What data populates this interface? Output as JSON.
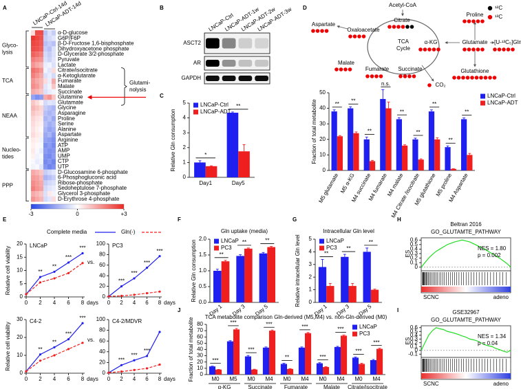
{
  "panels": [
    "A",
    "B",
    "C",
    "D",
    "E",
    "F",
    "G",
    "H",
    "I",
    "J"
  ],
  "heatmap": {
    "columns": [
      "LNCaP-Ctrl-14d",
      "LNCaP-ADT-14d"
    ],
    "rows": [
      "α-D-glucose",
      "G6P/F6P",
      "β-D-Fructose 1,6-bisphosphate",
      "Dihydroxyacetone phosphate",
      "D-Glycerate 3/2-phosphate",
      "Pyruvate",
      "Lactate",
      "Citrate/isocitrate",
      "α-Ketoglutarate",
      "Fumarate",
      "Malate",
      "Succinate",
      "Glutamine",
      "Glutamate",
      "Glycine",
      "Asparagine",
      "Proline",
      "Serine",
      "Alanine",
      "Aspartate",
      "Arginine",
      "ATP",
      "AMP",
      "UMP",
      "CTP",
      "UTP",
      "D-Glucosamine 6-phosphate",
      "6-Phosphogluconic acid",
      "Ribose-phosphate",
      "Sedoheptulose 7-phosphate",
      "Glycerol 3-phosphate",
      "D-Erythrose 4-phosphate"
    ],
    "values": [
      [
        0.5,
        2.5,
        2.5,
        -1,
        -0.5,
        -0.8
      ],
      [
        2.8,
        2.6,
        2.4,
        -0.8,
        -0.6,
        -0.4
      ],
      [
        2.6,
        2.5,
        2.3,
        -1,
        -0.8,
        -1
      ],
      [
        2.5,
        2.4,
        2.2,
        -0.8,
        -1,
        -0.5
      ],
      [
        2.2,
        2.0,
        1.8,
        -0.6,
        -0.8,
        -0.5
      ],
      [
        1.8,
        1.6,
        1.5,
        -0.5,
        -0.7,
        -0.4
      ],
      [
        1.5,
        1.2,
        1.0,
        -0.3,
        -0.2,
        -0.5
      ],
      [
        2.0,
        1.8,
        1.5,
        -0.2,
        -0.4,
        0.5
      ],
      [
        1.8,
        1.5,
        1.2,
        -0.5,
        -0.3,
        -0.6
      ],
      [
        1.5,
        1.2,
        1.0,
        0.5,
        -0.3,
        1.2
      ],
      [
        1.6,
        1.4,
        1.0,
        -0.4,
        -0.2,
        0.8
      ],
      [
        1.2,
        1.0,
        0.8,
        -0.5,
        -0.3,
        -0.2
      ],
      [
        -1.5,
        -1.8,
        -1.6,
        1.2,
        1.5,
        0.8
      ],
      [
        0.8,
        0.5,
        0.2,
        -0.6,
        -0.4,
        -0.5
      ],
      [
        1.0,
        0.8,
        0.6,
        -0.8,
        -1,
        -1.2
      ],
      [
        0.8,
        0.6,
        0.5,
        -1,
        -1.2,
        -1
      ],
      [
        0.6,
        0.4,
        0.3,
        -1.2,
        -1,
        -1.4
      ],
      [
        0.5,
        0.3,
        0.2,
        -1,
        -1.3,
        -1.1
      ],
      [
        0.4,
        0.2,
        0.1,
        -1.2,
        -1.5,
        -1.3
      ],
      [
        0.5,
        0.3,
        0.2,
        -1.4,
        -1.2,
        -1.6
      ],
      [
        0.3,
        0.2,
        -0.2,
        -1.5,
        -1.6,
        -1.8
      ],
      [
        0.2,
        0.1,
        -0.1,
        -1.8,
        -1.6,
        -1.9
      ],
      [
        0.3,
        -0.1,
        -0.3,
        -1.6,
        -1.8,
        -1.7
      ],
      [
        0.2,
        -0.2,
        -0.1,
        -1.8,
        -1.9,
        -1.6
      ],
      [
        -0.1,
        -0.3,
        -0.2,
        -1.9,
        -1.7,
        -2.0
      ],
      [
        -0.2,
        -0.1,
        -0.4,
        -1.7,
        -2.0,
        -1.8
      ],
      [
        1.2,
        1.0,
        0.8,
        -0.8,
        -0.6,
        -0.4
      ],
      [
        1.4,
        1.3,
        1.0,
        -1.2,
        -1,
        -0.8
      ],
      [
        1.6,
        1.4,
        1.2,
        -0.8,
        -0.6,
        -0.5
      ],
      [
        1.8,
        1.5,
        1.3,
        -0.6,
        -0.4,
        -0.3
      ],
      [
        1.2,
        1.0,
        0.8,
        -0.5,
        0.3,
        -0.2
      ],
      [
        1.5,
        1.2,
        1.0,
        -0.6,
        -0.4,
        0.5
      ]
    ],
    "groups": [
      [
        "Glyco-",
        "lysis"
      ],
      [
        "TCA"
      ],
      [
        "NEAA"
      ],
      [
        "Nucleo-",
        "tides"
      ],
      [
        "PPP"
      ]
    ],
    "annotation": [
      "Glutami-",
      "nolysis"
    ],
    "colorbar": {
      "range": [
        -3,
        3
      ],
      "ticks": [
        -3,
        0,
        {
          "value": 3,
          "label": "+3"
        }
      ]
    }
  },
  "blot": {
    "samples": [
      "LNCaP-Ctrl",
      "LNCaP-ADT-1w",
      "LNCaP-ADT-2w",
      "LNCaP-ADT-3w"
    ],
    "proteins": [
      "ASCT2",
      "AR",
      "GAPDH"
    ]
  },
  "pathway": {
    "nodes": [
      "Acetyl-CoA",
      "Citrate",
      "Oxaloacetate",
      "Aspartate",
      "Malate",
      "TCA",
      "Cycle",
      "α-KG",
      "Glutamate",
      "Proline",
      "[U-¹³C₅]Gln",
      "Glutathione",
      "Fumarate",
      "Succinate",
      "CO₂"
    ],
    "isotopes": [
      "¹²C",
      "¹³C"
    ]
  },
  "panel_e_legend": [
    {
      "name": "Complete media",
      "color": "#1f1ff0",
      "line_style": "solid"
    },
    {
      "name": "Gln(-)",
      "color": "#f01f1f",
      "line_style": "dashed"
    }
  ],
  "chart_data": [
    {
      "type": "bar",
      "ylabel": "Relative Gln consumption",
      "categories": [
        "Day1",
        "Day5"
      ],
      "series": [
        {
          "name": "LNCaP-Ctrl",
          "color": "#1f1ff0",
          "values": [
            1.0,
            4.35
          ],
          "errors": [
            0.12,
            0.05
          ]
        },
        {
          "name": "LNCaP-ADT",
          "color": "#f01f1f",
          "values": [
            0.75,
            1.75
          ],
          "errors": [
            0.03,
            0.45
          ]
        }
      ],
      "significance": [
        "*",
        "**"
      ],
      "ylim": [
        0,
        5
      ],
      "yticks": [
        0,
        1,
        2,
        3,
        4,
        5
      ],
      "legend": "upper left"
    },
    {
      "type": "bar",
      "ylabel": "Fraction of total metabolite",
      "categories": [
        "M5 glutamate",
        "M5 α-KG",
        "M4 succinate",
        "M4 fumarate",
        "M4 malate",
        "M4 Citrate /isocitrate",
        "M5 glutathione",
        "M5 proline",
        "M4 Aspartate"
      ],
      "series": [
        {
          "name": "LNCaP-Ctrl",
          "color": "#1f1ff0",
          "values": [
            38,
            40,
            20,
            46,
            33,
            20,
            38,
            15,
            33
          ],
          "errors": [
            1,
            1,
            1.5,
            6,
            1,
            0.8,
            1,
            0.8,
            0.8
          ]
        },
        {
          "name": "LNCaP-ADT",
          "color": "#f01f1f",
          "values": [
            22,
            24,
            6,
            40,
            16,
            7,
            20,
            1,
            10
          ],
          "errors": [
            0.5,
            0.8,
            0.5,
            4,
            0.5,
            0.5,
            1,
            0.2,
            1
          ]
        }
      ],
      "significance": [
        "**",
        "**",
        "**",
        "n.s.",
        "**",
        "**",
        "**",
        "**",
        "**"
      ],
      "ylim": [
        0,
        50
      ],
      "yticks": [
        0,
        10,
        20,
        30,
        40,
        50
      ],
      "legend": "right"
    },
    {
      "type": "line",
      "title": "LNCaP",
      "ylabel": "Relative cell viability",
      "xlabel": "days",
      "x": [
        0,
        2,
        4,
        6,
        8
      ],
      "xlim": [
        0,
        8
      ],
      "xticks": [
        0,
        2,
        4,
        6,
        8
      ],
      "ylim": [
        0,
        20
      ],
      "yticks": [
        0,
        5,
        10,
        15,
        20
      ],
      "series": [
        {
          "color": "#1f1ff0",
          "line_style": "solid",
          "values": [
            1,
            7.5,
            9.5,
            13,
            16.5
          ]
        },
        {
          "color": "#f01f1f",
          "line_style": "dashed",
          "values": [
            1,
            5.5,
            7,
            9,
            12.8
          ]
        }
      ],
      "significance": [
        null,
        "**",
        "**",
        "***",
        "***"
      ],
      "annotation": "vs."
    },
    {
      "type": "line",
      "title": "PC3",
      "xlabel": "days",
      "x": [
        0,
        2,
        4,
        6,
        8
      ],
      "xlim": [
        0,
        8
      ],
      "xticks": [
        0,
        2,
        4,
        6,
        8
      ],
      "ylim": [
        0,
        100
      ],
      "yticks": [
        0,
        20,
        40,
        60,
        80,
        100
      ],
      "series": [
        {
          "color": "#1f1ff0",
          "line_style": "solid",
          "values": [
            1,
            20,
            35,
            55,
            77
          ]
        },
        {
          "color": "#f01f1f",
          "line_style": "dashed",
          "values": [
            1,
            2,
            4,
            7,
            10
          ]
        }
      ],
      "significance": [
        null,
        "***",
        "***",
        "***",
        "***"
      ]
    },
    {
      "type": "line",
      "title": "C4-2",
      "ylabel": "Relative cell viability",
      "xlabel": "days",
      "x": [
        0,
        2,
        4,
        6,
        8
      ],
      "xlim": [
        0,
        8
      ],
      "xticks": [
        0,
        2,
        4,
        6,
        8
      ],
      "ylim": [
        0,
        30
      ],
      "yticks": [
        0,
        10,
        20,
        30
      ],
      "series": [
        {
          "color": "#1f1ff0",
          "line_style": "solid",
          "values": [
            1,
            10.5,
            14.5,
            19,
            28
          ]
        },
        {
          "color": "#f01f1f",
          "line_style": "dashed",
          "values": [
            1,
            7,
            10,
            13.5,
            17
          ]
        }
      ],
      "significance": [
        null,
        "**",
        "**",
        "***",
        "***"
      ],
      "annotation": "vs."
    },
    {
      "type": "line",
      "title": "C4-2/MDVR",
      "xlabel": "days",
      "x": [
        0,
        2,
        4,
        6,
        8
      ],
      "xlim": [
        0,
        8
      ],
      "xticks": [
        0,
        2,
        4,
        6,
        8
      ],
      "ylim": [
        0,
        100
      ],
      "yticks": [
        0,
        20,
        40,
        60,
        80,
        100
      ],
      "series": [
        {
          "color": "#1f1ff0",
          "line_style": "solid",
          "values": [
            1,
            15,
            24,
            32,
            77
          ]
        },
        {
          "color": "#f01f1f",
          "line_style": "dashed",
          "values": [
            1,
            3,
            6,
            9,
            16
          ]
        }
      ],
      "significance": [
        null,
        "***",
        "***",
        "***",
        null
      ]
    },
    {
      "type": "bar",
      "title": "Gln uptake (media)",
      "ylabel": "Relative Gln consumption",
      "categories": [
        "Day 1",
        "Day 3",
        "Day 5"
      ],
      "series": [
        {
          "name": "LNCaP",
          "color": "#1f1ff0",
          "values": [
            1.0,
            1.47,
            1.55
          ],
          "errors": [
            0.05,
            0.04,
            0.03
          ]
        },
        {
          "name": "PC3",
          "color": "#f01f1f",
          "values": [
            1.3,
            1.7,
            1.75
          ],
          "errors": [
            0.03,
            0.02,
            0.02
          ]
        }
      ],
      "significance": [
        "**",
        "**",
        "**"
      ],
      "ylim": [
        0,
        2
      ],
      "yticks": [
        {
          "value": 0,
          "label": "0.0"
        },
        0.5,
        {
          "value": 1,
          "label": "1.0"
        },
        1.5,
        {
          "value": 2,
          "label": "2.0"
        }
      ],
      "legend": "upper left"
    },
    {
      "type": "bar",
      "title": "Intracellular Gln level",
      "ylabel": "Relative intracellular Gln level",
      "categories": [
        "Day 1",
        "Day 3",
        "Day 5"
      ],
      "series": [
        {
          "name": "LNCaP",
          "color": "#1f1ff0",
          "values": [
            2.8,
            3.6,
            4.0
          ],
          "errors": [
            0.6,
            0.2,
            0.3
          ]
        },
        {
          "name": "PC3",
          "color": "#f01f1f",
          "values": [
            1.3,
            1.3,
            1.0
          ],
          "errors": [
            0.2,
            0.2,
            0.05
          ]
        }
      ],
      "significance": [
        "**",
        "**",
        "**"
      ],
      "ylim": [
        0,
        5
      ],
      "yticks": [
        0,
        1,
        2,
        3,
        4,
        5
      ],
      "legend": "upper left"
    },
    {
      "type": "bar",
      "title": "TCA metabolite comparison Gln-derived (M5,M4) vs. non-Gln-derived (M0)",
      "ylabel": "Fraction of total metabolite",
      "categories": [
        "M0",
        "M5",
        "M0",
        "M4",
        "M0",
        "M4",
        "M0",
        "M4",
        "M0",
        "M4"
      ],
      "groups": [
        "α-KG",
        "Succinate",
        "Fumarate",
        "Malate",
        "Citrate/isocitrate"
      ],
      "series": [
        {
          "name": "LNCaP",
          "color": "#1f1ff0",
          "values": [
            13,
            53,
            29,
            43,
            17,
            43,
            18,
            44,
            27,
            23
          ],
          "errors": [
            0.5,
            1,
            1.5,
            1,
            1,
            1,
            1,
            1,
            1,
            1
          ]
        },
        {
          "name": "PC3",
          "color": "#f01f1f",
          "values": [
            8,
            72,
            8,
            70,
            9,
            66,
            12,
            62,
            17,
            41
          ],
          "errors": [
            0.3,
            1.5,
            0.5,
            1,
            0.5,
            1,
            0.5,
            1,
            1,
            1
          ]
        }
      ],
      "significance": [
        "***",
        "***",
        "***",
        "***",
        "**",
        "***",
        "***",
        "***",
        "***",
        "***"
      ],
      "ylim": [
        0,
        80
      ],
      "yticks": [
        0,
        10,
        20,
        30,
        40,
        50,
        60,
        70,
        80
      ],
      "legend": "upper right"
    },
    {
      "type": "gsea",
      "title": "Beltran 2016",
      "subtitle": "GO_GLUTAMTE_PATHWAY",
      "ylabel": "ES",
      "annotations": [
        "NES = 1.80",
        "p = 0.002"
      ],
      "x_labels": [
        "SCNC",
        "adeno"
      ],
      "color": "#22dd22",
      "ylim": [
        -0.05,
        0.65
      ],
      "yticks": [
        0,
        0.1,
        0.2,
        0.3,
        0.4,
        0.5,
        0.6
      ],
      "values": [
        0,
        0.1,
        0.2,
        0.28,
        0.35,
        0.4,
        0.45,
        0.5,
        0.53,
        0.56,
        0.58,
        0.6,
        0.58,
        0.56,
        0.52,
        0.48,
        0.44,
        0.4,
        0.35,
        0.3,
        0.25,
        0.2,
        0.14,
        0.08,
        0
      ]
    },
    {
      "type": "gsea",
      "title": "GSE32967",
      "subtitle": "GO_GLUTAMTE_PATHWAY",
      "ylabel": "ES",
      "annotations": [
        "NES = 1.34",
        "p = 0.04"
      ],
      "x_labels": [
        "SCNC",
        "adeno"
      ],
      "color": "#22dd22",
      "ylim": [
        -0.15,
        0.65
      ],
      "yticks": [
        -0.1,
        0,
        0.1,
        0.2,
        0.3,
        0.4,
        0.5,
        0.6
      ],
      "values": [
        0,
        0.2,
        0.4,
        0.52,
        0.6,
        0.57,
        0.55,
        0.5,
        0.48,
        0.45,
        0.42,
        0.38,
        0.35,
        0.3,
        0.28,
        0.25,
        0.2,
        0.15,
        0.12,
        0.1,
        0.05,
        0.02,
        -0.02,
        -0.05,
        0
      ]
    }
  ]
}
